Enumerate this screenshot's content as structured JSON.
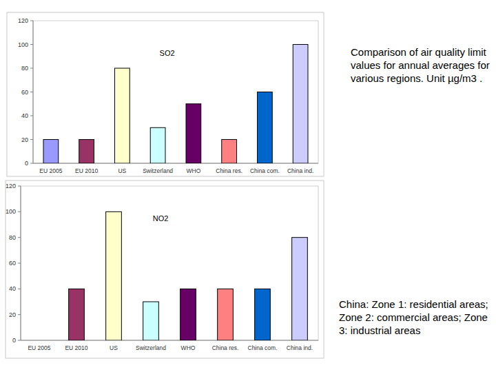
{
  "caption": "Comparison of air quality limit values for annual averages for various regions. Unit µg/m3 .",
  "note": "China: Zone 1: residential areas; Zone 2: commercial areas; Zone 3: industrial areas",
  "chart_data": [
    {
      "type": "bar",
      "title": "SO2",
      "categories": [
        "EU 2005",
        "EU 2010",
        "US",
        "Switzerland",
        "WHO",
        "China res.",
        "China com.",
        "China ind."
      ],
      "values": [
        20,
        20,
        80,
        30,
        50,
        20,
        60,
        100
      ],
      "colors": [
        "#9999ff",
        "#993366",
        "#ffffcc",
        "#ccffff",
        "#660066",
        "#ff8080",
        "#0066cc",
        "#ccccff"
      ],
      "ylim": [
        0,
        120
      ],
      "yticks": [
        0,
        20,
        40,
        60,
        80,
        100,
        120
      ],
      "grid": false
    },
    {
      "type": "bar",
      "title": "NO2",
      "categories": [
        "EU 2005",
        "EU 2010",
        "US",
        "Switzerland",
        "WHO",
        "China res.",
        "China com.",
        "China ind."
      ],
      "values": [
        null,
        40,
        100,
        30,
        40,
        40,
        40,
        80
      ],
      "colors": [
        "#9999ff",
        "#993366",
        "#ffffcc",
        "#ccffff",
        "#660066",
        "#ff8080",
        "#0066cc",
        "#ccccff"
      ],
      "ylim": [
        0,
        120
      ],
      "yticks": [
        0,
        20,
        40,
        60,
        80,
        100,
        120
      ],
      "grid": false
    }
  ]
}
